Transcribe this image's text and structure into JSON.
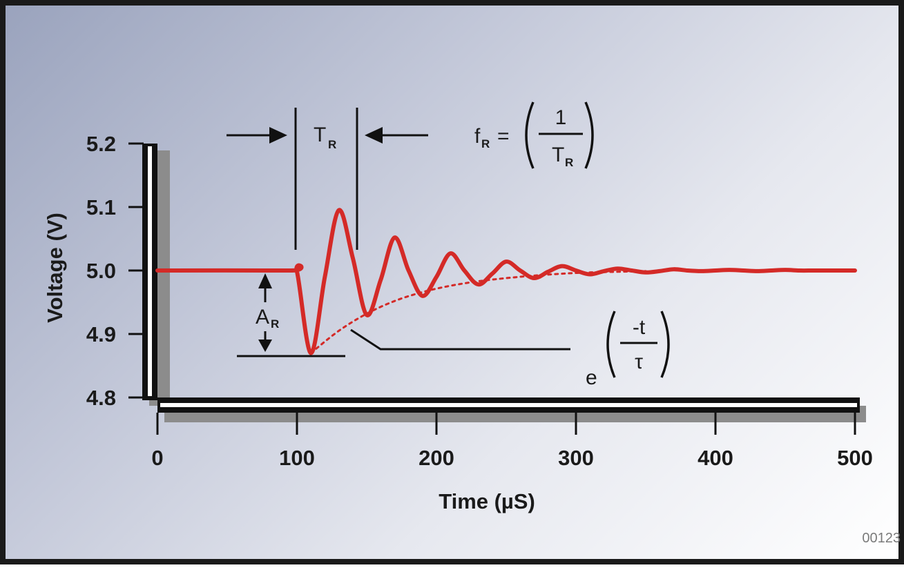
{
  "figure_id": "00123",
  "colors": {
    "signal": "#d42a27",
    "axis": "#111111",
    "shadow": "#8c8c8c"
  },
  "chart_data": {
    "type": "line",
    "title": "",
    "xlabel": "Time (µS)",
    "ylabel": "Voltage (V)",
    "xlim": [
      0,
      500
    ],
    "ylim": [
      4.8,
      5.2
    ],
    "x_ticks": [
      "0",
      "100",
      "200",
      "300",
      "400",
      "500"
    ],
    "y_ticks": [
      "4.8",
      "4.9",
      "5.0",
      "5.1",
      "5.2"
    ],
    "grid": false,
    "legend": "none",
    "series": [
      {
        "style": "solid",
        "points": [
          [
            0,
            5.0
          ],
          [
            95,
            5.0
          ],
          [
            100,
            4.998
          ],
          [
            110,
            4.87
          ],
          [
            120,
            4.99
          ],
          [
            130,
            5.095
          ],
          [
            140,
            5.02
          ],
          [
            150,
            4.93
          ],
          [
            160,
            4.985
          ],
          [
            170,
            5.052
          ],
          [
            180,
            5.0
          ],
          [
            190,
            4.96
          ],
          [
            200,
            4.99
          ],
          [
            210,
            5.027
          ],
          [
            220,
            5.0
          ],
          [
            230,
            4.978
          ],
          [
            240,
            4.995
          ],
          [
            250,
            5.014
          ],
          [
            260,
            5.0
          ],
          [
            270,
            4.988
          ],
          [
            280,
            4.998
          ],
          [
            290,
            5.007
          ],
          [
            300,
            5.0
          ],
          [
            310,
            4.994
          ],
          [
            320,
            4.999
          ],
          [
            330,
            5.003
          ],
          [
            340,
            5.0
          ],
          [
            350,
            4.997
          ],
          [
            360,
            4.999
          ],
          [
            370,
            5.002
          ],
          [
            380,
            5.0
          ],
          [
            390,
            4.999
          ],
          [
            400,
            5.0
          ],
          [
            410,
            5.001
          ],
          [
            420,
            5.0
          ],
          [
            430,
            4.999
          ],
          [
            440,
            5.0
          ],
          [
            450,
            5.001
          ],
          [
            460,
            5.0
          ],
          [
            470,
            5.0
          ],
          [
            480,
            5.0
          ],
          [
            490,
            5.0
          ],
          [
            500,
            5.0
          ]
        ]
      },
      {
        "style": "dotted",
        "points": [
          [
            110,
            4.87
          ],
          [
            130,
            4.905
          ],
          [
            150,
            4.932
          ],
          [
            170,
            4.952
          ],
          [
            190,
            4.966
          ],
          [
            210,
            4.976
          ],
          [
            230,
            4.983
          ],
          [
            250,
            4.988
          ],
          [
            270,
            4.992
          ],
          [
            290,
            4.995
          ],
          [
            310,
            4.997
          ],
          [
            330,
            4.998
          ],
          [
            350,
            4.999
          ]
        ]
      }
    ],
    "annotations": {
      "period_label": "T",
      "period_sub": "R",
      "amplitude_label": "A",
      "amplitude_sub": "R",
      "freq_lhs": "f",
      "freq_lhs_sub": "R",
      "freq_equals": "=",
      "freq_numerator": "1",
      "freq_denominator": "T",
      "freq_denominator_sub": "R",
      "decay_base": "e",
      "decay_numerator": "-t",
      "decay_denominator": "τ"
    }
  }
}
